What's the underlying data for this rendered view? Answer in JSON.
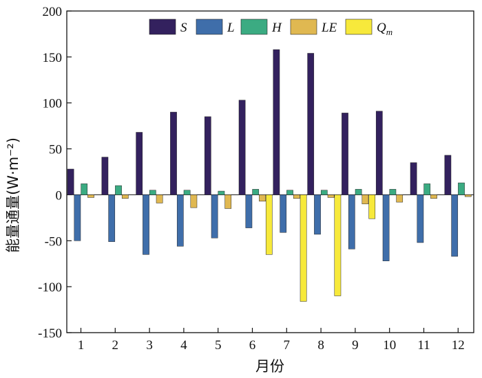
{
  "chart_data": {
    "type": "bar",
    "title": "",
    "xlabel": "月份",
    "ylabel": "能量通量(W·m⁻²)",
    "ylim": [
      -150,
      200
    ],
    "yticks": [
      -150,
      -100,
      -50,
      0,
      50,
      100,
      150,
      200
    ],
    "categories": [
      "1",
      "2",
      "3",
      "4",
      "5",
      "6",
      "7",
      "8",
      "9",
      "10",
      "11",
      "12"
    ],
    "legend_position": "top",
    "grid": false,
    "series": [
      {
        "name": "S",
        "color": "#33215e",
        "values": [
          28,
          41,
          68,
          90,
          85,
          103,
          158,
          154,
          89,
          91,
          35,
          43
        ]
      },
      {
        "name": "L",
        "color": "#3f6eaa",
        "values": [
          -50,
          -51,
          -65,
          -56,
          -47,
          -36,
          -41,
          -43,
          -59,
          -72,
          -52,
          -67
        ]
      },
      {
        "name": "H",
        "color": "#3bab82",
        "values": [
          12,
          10,
          5,
          5,
          4,
          6,
          5,
          5,
          6,
          6,
          12,
          13
        ]
      },
      {
        "name": "LE",
        "color": "#e0b851",
        "values": [
          -3,
          -4,
          -9,
          -14,
          -15,
          -7,
          -4,
          -3,
          -10,
          -8,
          -4,
          -2
        ]
      },
      {
        "name": "Q_m",
        "label_main": "Q",
        "label_sub": "m",
        "color": "#f7e93b",
        "values": [
          0,
          0,
          0,
          0,
          0,
          -65,
          -116,
          -110,
          -26,
          0,
          0,
          0
        ]
      }
    ]
  }
}
